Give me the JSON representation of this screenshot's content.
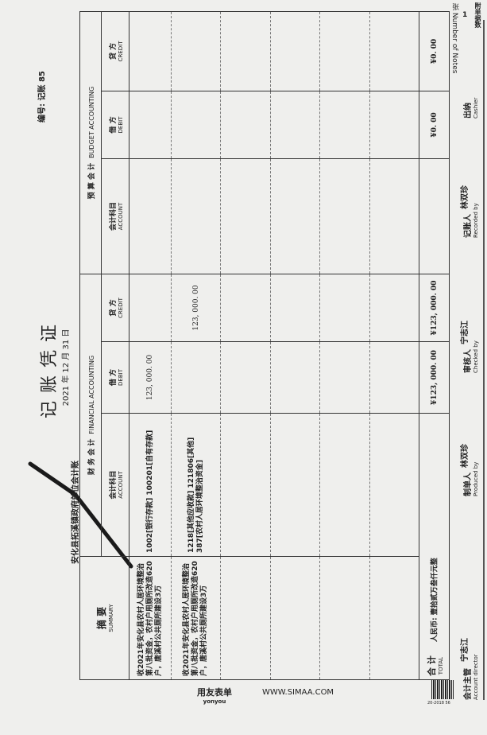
{
  "header": {
    "title": "记账凭证",
    "date": "2021 年 12 月 31 日",
    "unit": "安化县拓溪镇政府单位会计账",
    "voucher_no": "编号: 记账 85",
    "attachments_label": "附单据数",
    "attachments_count": "1",
    "attachments_unit": "张",
    "attachments_en": "Number of Notes"
  },
  "table": {
    "summary": {
      "cn": "摘 要",
      "en": "SUMMARY"
    },
    "financial": {
      "cn": "财 务 会 计",
      "en": "FINANCIAL ACCOUNTING"
    },
    "budget": {
      "cn": "预 算 会 计",
      "en": "BUDGET ACCOUNTING"
    },
    "account": {
      "cn": "会计科目",
      "en": "ACCOUNT"
    },
    "debit": {
      "cn": "借 方",
      "en": "DEBIT"
    },
    "credit": {
      "cn": "贷 方",
      "en": "CREDIT"
    },
    "rows": [
      {
        "summary": "收2021年安化县农村人居环境整治第八批资金，农村户用厕所改造620户，唐溪村公共厕所建设3万",
        "fin_account": "1002[银行存款] 100201[自有存款]",
        "fin_debit": "123, 000. 00",
        "fin_credit": "",
        "bud_account": "",
        "bud_debit": "",
        "bud_credit": ""
      },
      {
        "summary": "收2021年安化县农村人居环境整治第八批资金，农村户用厕所改造620户，唐溪村公共厕所建设3万",
        "fin_account": "1218[其他应收款] 121806[其他] 387[农村人居环境整治资金]",
        "fin_debit": "",
        "fin_credit": "123, 000. 00",
        "bud_account": "",
        "bud_debit": "",
        "bud_credit": ""
      }
    ],
    "total": {
      "cn": "合 计",
      "en": "TOTAL",
      "words": "人民币: 壹拾贰万叁仟元整",
      "fin_debit": "¥123, 000. 00",
      "fin_credit": "¥123, 000. 00",
      "bud_debit": "¥0. 00",
      "bud_credit": "¥0. 00"
    }
  },
  "signatures": [
    {
      "cn": "会计主管",
      "en": "Account director",
      "name": "宁志江"
    },
    {
      "cn": "制单人",
      "en": "Produced by",
      "name": "林双珍"
    },
    {
      "cn": "审核人",
      "en": "Checked by",
      "name": "宁志江"
    },
    {
      "cn": "记账人",
      "en": "Recorded by",
      "name": "林双珍"
    },
    {
      "cn": "出纳",
      "en": "Cashier",
      "name": ""
    }
  ],
  "footer": {
    "brand": "用友表单",
    "brand_en": "yonyou",
    "url": "WWW.SIMAA.COM",
    "barcode_label": "20-2018 56"
  }
}
